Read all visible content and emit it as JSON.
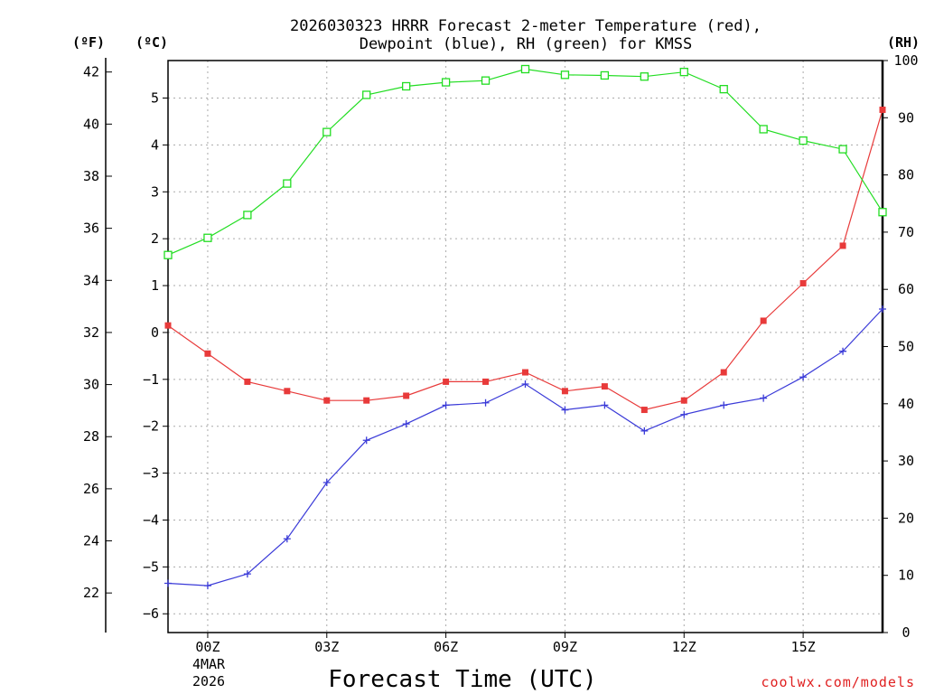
{
  "chart_data": {
    "type": "line",
    "title_line1": "2026030323 HRRR Forecast 2-meter Temperature (red),",
    "title_line2": "Dewpoint (blue), RH (green) for KMSS",
    "xlabel": "Forecast Time (UTC)",
    "units": {
      "fahrenheit": "(ºF)",
      "celsius": "(ºC)",
      "rh": "(RH)"
    },
    "x_ticks": [
      "00Z",
      "03Z",
      "06Z",
      "09Z",
      "12Z",
      "15Z"
    ],
    "date_line1": "4MAR",
    "date_line2": "2026",
    "celsius_ticks": [
      "5",
      "4",
      "3",
      "2",
      "1",
      "0",
      "−1",
      "−2",
      "−3",
      "−4",
      "−5",
      "−6"
    ],
    "fahrenheit_ticks": [
      "42",
      "40",
      "38",
      "36",
      "34",
      "32",
      "30",
      "28",
      "26",
      "24",
      "22"
    ],
    "rh_ticks": [
      "100",
      "90",
      "80",
      "70",
      "60",
      "50",
      "40",
      "30",
      "20",
      "10",
      "0"
    ],
    "ylim_celsius": [
      -6.4,
      5.8
    ],
    "ylim_rh": [
      0,
      100
    ],
    "xlim_hours": [
      -1,
      17
    ],
    "hours": [
      -1,
      0,
      1,
      2,
      3,
      4,
      5,
      6,
      7,
      8,
      9,
      10,
      11,
      12,
      13,
      14,
      15,
      16,
      17
    ],
    "series": [
      {
        "name": "Temperature",
        "color": "#e83a3a",
        "marker": "filled-square",
        "axis": "celsius",
        "values": [
          0.15,
          -0.45,
          -1.05,
          -1.25,
          -1.45,
          -1.45,
          -1.35,
          -1.05,
          -1.05,
          -0.85,
          -1.25,
          -1.15,
          -1.65,
          -1.45,
          -0.85,
          0.25,
          1.05,
          1.85,
          4.75
        ]
      },
      {
        "name": "Dewpoint",
        "color": "#3a3ad8",
        "marker": "plus",
        "axis": "celsius",
        "values": [
          -5.35,
          -5.4,
          -5.15,
          -4.4,
          -3.2,
          -2.3,
          -1.95,
          -1.55,
          -1.5,
          -1.1,
          -1.65,
          -1.55,
          -2.1,
          -1.75,
          -1.55,
          -1.4,
          -0.95,
          -0.4,
          0.5
        ]
      },
      {
        "name": "RH",
        "color": "#22dd22",
        "marker": "open-square",
        "axis": "rh",
        "values": [
          66,
          69,
          73,
          78.5,
          87.5,
          94,
          95.5,
          96.2,
          96.5,
          98.5,
          97.5,
          97.4,
          97.2,
          98,
          95,
          88,
          86,
          84.5,
          73.5
        ]
      }
    ]
  },
  "footer": {
    "watermark": "coolwx.com/models"
  }
}
